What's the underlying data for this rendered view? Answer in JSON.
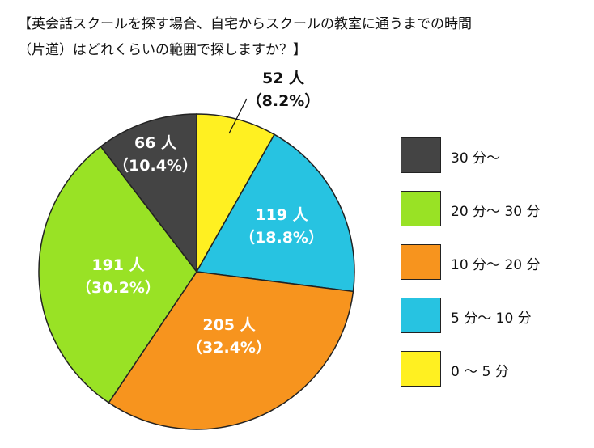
{
  "title_lines": [
    "【英会話スクールを探す場合、自宅からスクールの教室に通うまでの時間",
    "（片道）はどれくらいの範囲で探しますか？】"
  ],
  "chart_data": {
    "type": "pie",
    "title": "【英会話スクールを探す場合、自宅からスクールの教室に通うまでの時間（片道）はどれくらいの範囲で探しますか？】",
    "slices": [
      {
        "label": "0 ～ 5 分",
        "count": 52,
        "count_label": "52 人",
        "percent_label": "（8.2%）",
        "value": 8.2,
        "color": "#fff021"
      },
      {
        "label": "5 分～ 10 分",
        "count": 119,
        "count_label": "119 人",
        "percent_label": "（18.8%）",
        "value": 18.8,
        "color": "#27c3e1"
      },
      {
        "label": "10 分～ 20 分",
        "count": 205,
        "count_label": "205 人",
        "percent_label": "（32.4%）",
        "value": 32.4,
        "color": "#f7941e"
      },
      {
        "label": "20 分～ 30 分",
        "count": 191,
        "count_label": "191 人",
        "percent_label": "（30.2%）",
        "value": 30.2,
        "color": "#99e225"
      },
      {
        "label": "30 分～",
        "count": 66,
        "count_label": "66 人",
        "percent_label": "（10.4%）",
        "value": 10.4,
        "color": "#444444"
      }
    ],
    "legend_order": [
      "30 分～",
      "20 分～ 30 分",
      "10 分～ 20 分",
      "5 分～ 10 分",
      "0 ～ 5 分"
    ],
    "legend_position": "right"
  }
}
